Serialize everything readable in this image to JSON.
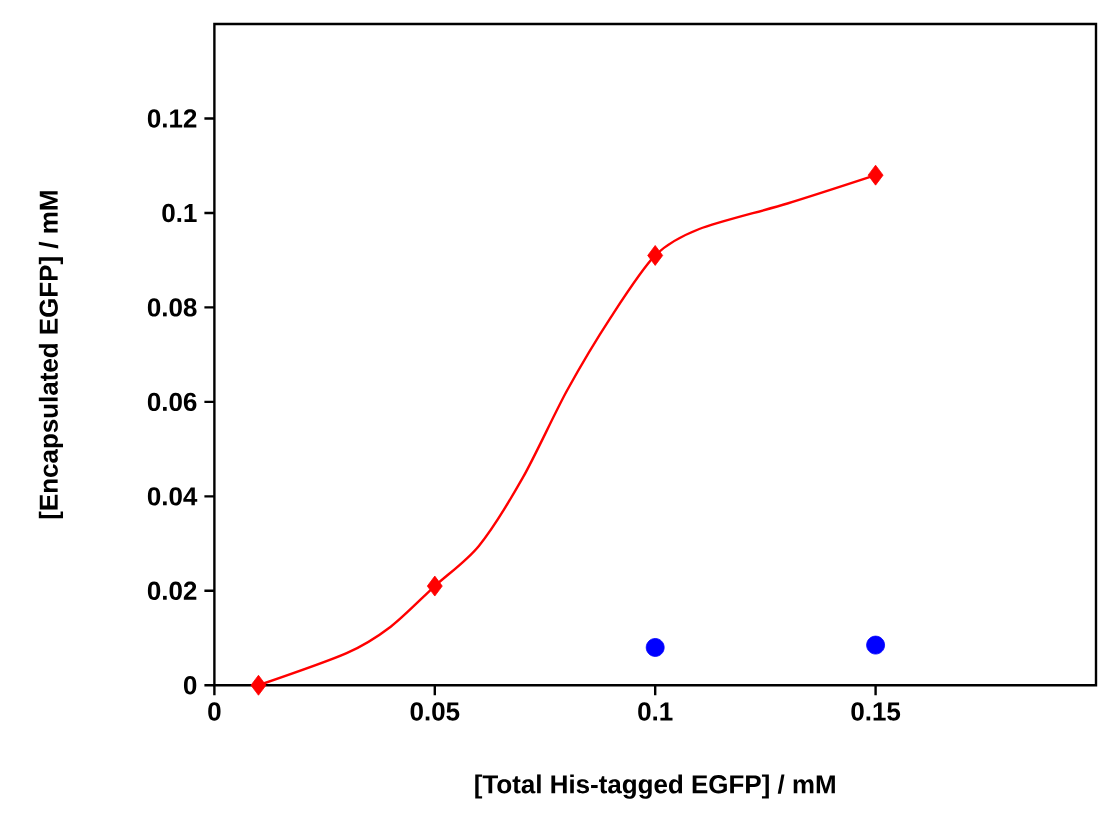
{
  "chart_data": {
    "type": "scatter",
    "xlabel": "[Total His-tagged EGFP] / mM",
    "ylabel": "[Encapsulated EGFP] / mM",
    "xlim": [
      0,
      0.2
    ],
    "ylim": [
      0,
      0.14
    ],
    "xticks": [
      0,
      0.05,
      0.1,
      0.15
    ],
    "yticks": [
      0,
      0.02,
      0.04,
      0.06,
      0.08,
      0.1,
      0.12
    ],
    "series": [
      {
        "type": "line",
        "marker": "none",
        "color": "#ff0000",
        "x": [
          0.01,
          0.03,
          0.04,
          0.05,
          0.06,
          0.07,
          0.08,
          0.09,
          0.1,
          0.11,
          0.13,
          0.15
        ],
        "values": [
          0,
          0.0068,
          0.0124,
          0.021,
          0.0295,
          0.044,
          0.0624,
          0.078,
          0.091,
          0.0966,
          0.102,
          0.108
        ]
      },
      {
        "marker": "diamond",
        "color": "#ff0000",
        "x": [
          0.01,
          0.05,
          0.1,
          0.15
        ],
        "values": [
          0,
          0.021,
          0.091,
          0.108
        ]
      },
      {
        "marker": "circle",
        "color": "#0000ff",
        "x": [
          0.1,
          0.15
        ],
        "values": [
          0.008,
          0.0085
        ]
      }
    ]
  }
}
